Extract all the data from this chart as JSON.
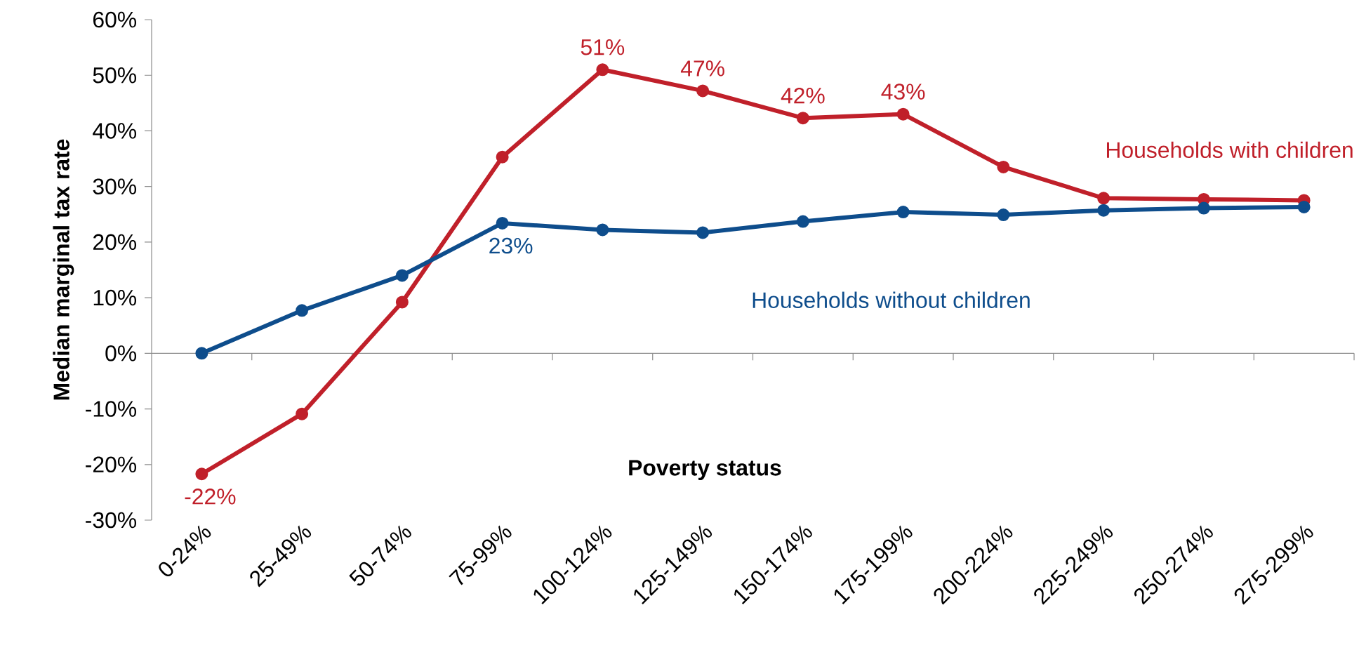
{
  "chart_data": {
    "type": "line",
    "xlabel": "Poverty status",
    "ylabel": "Median marginal tax rate",
    "categories": [
      "0-24%",
      "25-49%",
      "50-74%",
      "75-99%",
      "100-124%",
      "125-149%",
      "150-174%",
      "175-199%",
      "200-224%",
      "225-249%",
      "250-274%",
      "275-299%"
    ],
    "series": [
      {
        "name": "Households with children",
        "color": "#c0202a",
        "values": [
          -21.7,
          -10.9,
          9.2,
          35.3,
          51,
          47.2,
          42.3,
          43,
          33.5,
          27.9,
          27.7,
          27.5
        ],
        "value_labels": [
          "-22%",
          null,
          null,
          null,
          "51%",
          "47%",
          "42%",
          "43%",
          null,
          null,
          null,
          null
        ]
      },
      {
        "name": "Households without children",
        "color": "#0e4d8c",
        "values": [
          0,
          7.7,
          14,
          23.4,
          22.2,
          21.7,
          23.7,
          25.4,
          24.9,
          25.7,
          26.1,
          26.3
        ],
        "value_labels": [
          null,
          null,
          null,
          "23%",
          null,
          null,
          null,
          null,
          null,
          null,
          null,
          null
        ]
      }
    ],
    "ylim": [
      -30,
      60
    ],
    "yticks": [
      {
        "value": -30,
        "label": "-30%"
      },
      {
        "value": -20,
        "label": "-20%"
      },
      {
        "value": -10,
        "label": "-10%"
      },
      {
        "value": 0,
        "label": "0%"
      },
      {
        "value": 10,
        "label": "10%"
      },
      {
        "value": 20,
        "label": "20%"
      },
      {
        "value": 30,
        "label": "30%"
      },
      {
        "value": 40,
        "label": "40%"
      },
      {
        "value": 50,
        "label": "50%"
      },
      {
        "value": 60,
        "label": "60%"
      }
    ],
    "marker": "circle",
    "line_style": "solid"
  }
}
